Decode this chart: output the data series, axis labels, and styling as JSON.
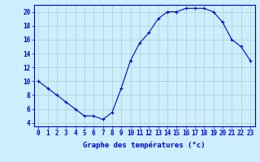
{
  "hours": [
    0,
    1,
    2,
    3,
    4,
    5,
    6,
    7,
    8,
    9,
    10,
    11,
    12,
    13,
    14,
    15,
    16,
    17,
    18,
    19,
    20,
    21,
    22,
    23
  ],
  "temps": [
    10,
    9,
    8,
    7,
    6,
    5,
    5,
    4.5,
    5.5,
    9,
    13,
    15.5,
    17,
    19,
    20,
    20,
    20.5,
    20.5,
    20.5,
    20,
    18.5,
    16,
    15,
    13
  ],
  "line_color": "#0000cc",
  "marker": "+",
  "marker_size": 3,
  "bg_color": "#cceeff",
  "grid_color": "#aacccc",
  "axis_color": "#0000cc",
  "xlabel": "Graphe des températures (°c)",
  "ylim": [
    3.5,
    21
  ],
  "xlim": [
    -0.5,
    23.5
  ],
  "yticks": [
    4,
    6,
    8,
    10,
    12,
    14,
    16,
    18,
    20
  ],
  "xtick_labels": [
    "0",
    "1",
    "2",
    "3",
    "4",
    "5",
    "6",
    "7",
    "8",
    "9",
    "10",
    "11",
    "12",
    "13",
    "14",
    "15",
    "16",
    "17",
    "18",
    "19",
    "20",
    "21",
    "22",
    "23"
  ],
  "label_fontsize": 6.5,
  "tick_fontsize": 5.5
}
